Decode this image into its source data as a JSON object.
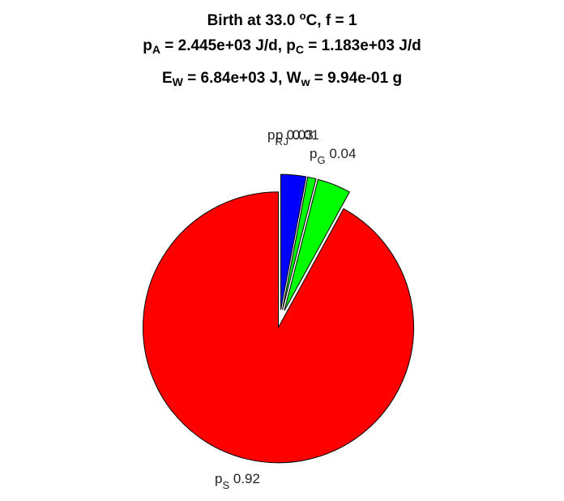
{
  "chart_data": {
    "type": "pie",
    "title": {
      "line1": {
        "pre": "Birth at 33.0 ",
        "sup": "o",
        "post": "C, f = 1"
      },
      "line2": {
        "a": "p",
        "a_sub": "A",
        "b": " = 2.445e+03 J/d, p",
        "b_sub": "C",
        "c": " = 1.183e+03 J/d"
      },
      "line3": {
        "a": "E",
        "a_sub": "W",
        "b": " = 6.84e+03 J, W",
        "b_sub": "w",
        "c": " = 9.94e-01 g"
      }
    },
    "slices": [
      {
        "symbol": "p",
        "sub": "S",
        "value_text": "0.92",
        "fraction": 0.92,
        "color": "#ff0000",
        "explode": false
      },
      {
        "symbol": "p",
        "sub": "R",
        "value_text": "0.03",
        "fraction": 0.03,
        "color": "#0000ff",
        "explode": true
      },
      {
        "symbol": "p",
        "sub": "J",
        "value_text": "0.01",
        "fraction": 0.01,
        "color": "#00ff00",
        "explode": true
      },
      {
        "symbol": "p",
        "sub": "G",
        "value_text": "0.04",
        "fraction": 0.04,
        "color": "#00ff00",
        "explode": true
      }
    ]
  }
}
